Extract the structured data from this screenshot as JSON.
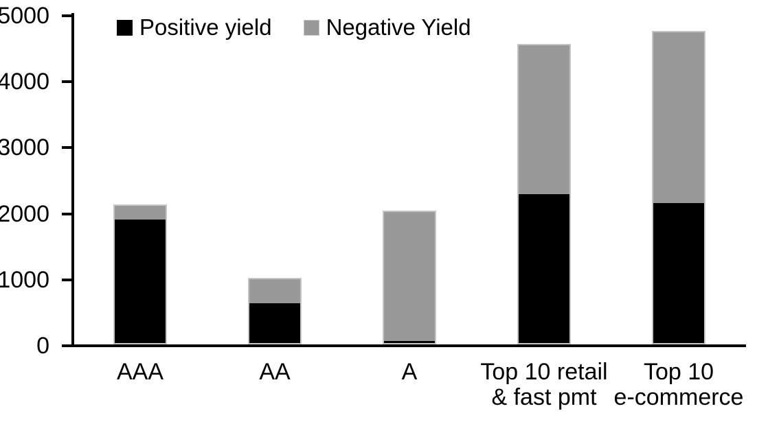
{
  "chart_data": {
    "type": "bar",
    "stacked": true,
    "title": "",
    "xlabel": "",
    "ylabel": "",
    "categories": [
      "AAA",
      "AA",
      "A",
      "Top 10 retail\n& fast pmt",
      "Top 10\ne-commerce"
    ],
    "series": [
      {
        "name": "Positive yield",
        "color": "#000000",
        "values": [
          1890,
          620,
          50,
          2280,
          2140
        ]
      },
      {
        "name": "Negative Yield",
        "color": "#999999",
        "values": [
          230,
          380,
          1980,
          2280,
          2610
        ]
      }
    ],
    "totals": [
      2120,
      1000,
      2030,
      4560,
      4750
    ],
    "ylim": [
      0,
      5000
    ],
    "y_ticks": [
      "0",
      "1000",
      "2000",
      "3000",
      "4000",
      "5000"
    ],
    "grid": false,
    "legend_position": "top-left",
    "axis_color": "#000000",
    "bar_outline_color": "#c6c6c6"
  }
}
